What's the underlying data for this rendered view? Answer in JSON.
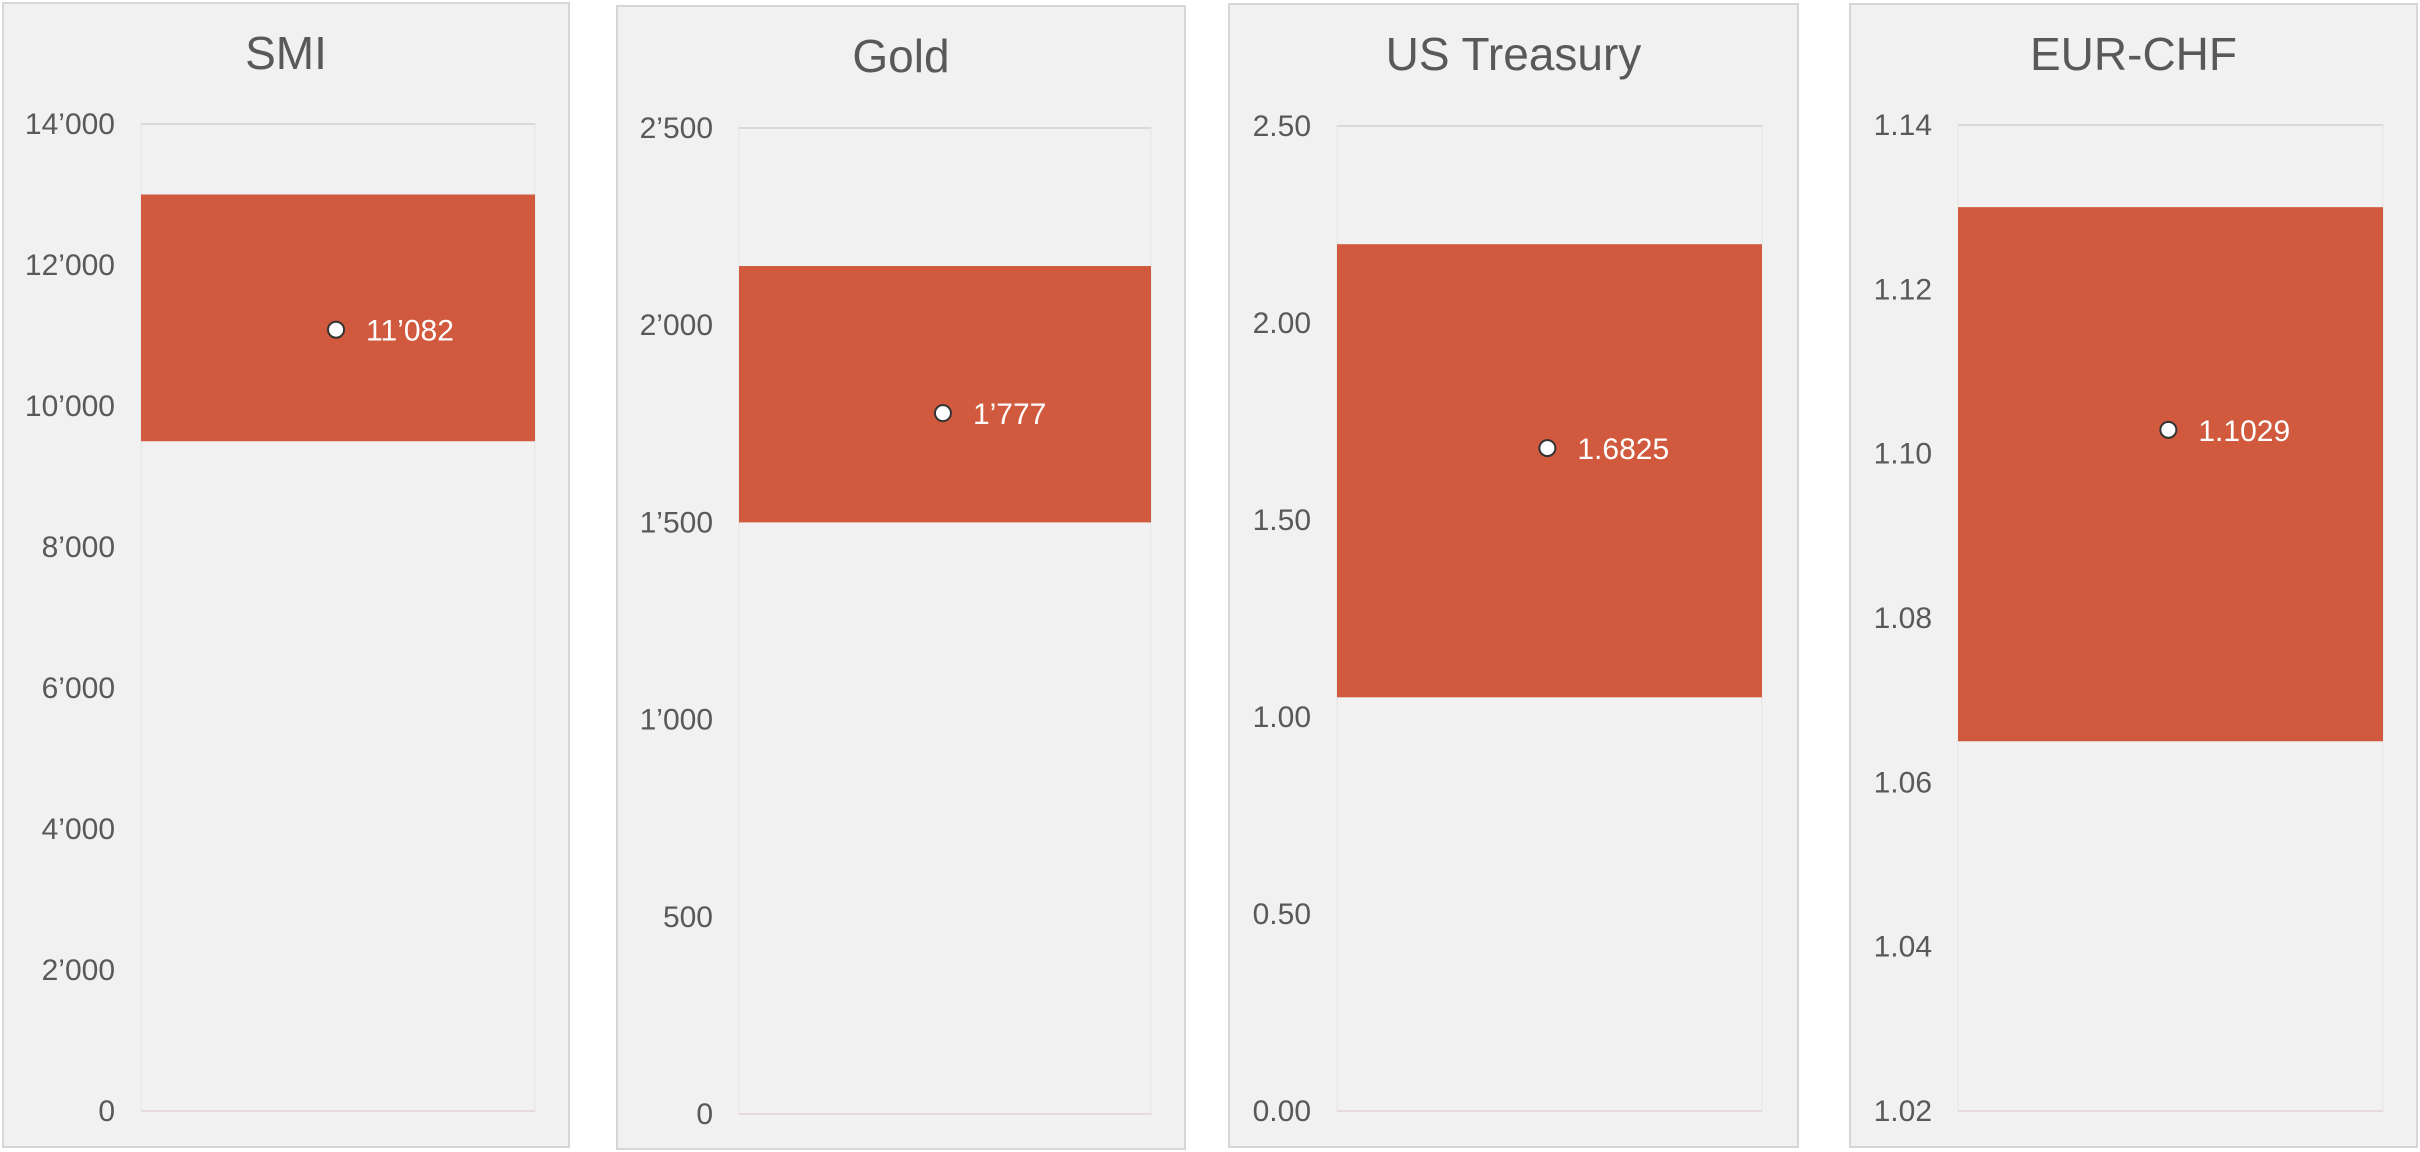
{
  "colors": {
    "band": "#d15a3e",
    "panel_bg": "#f1f1f1",
    "grid": "#d9d9d9",
    "text": "#595959",
    "label": "#ffffff"
  },
  "chart_data": [
    {
      "type": "range-bar",
      "title": "SMI",
      "ylim": [
        0,
        14000
      ],
      "ticks": [
        "0",
        "2’000",
        "4’000",
        "6’000",
        "8’000",
        "10’000",
        "12’000",
        "14’000"
      ],
      "tick_values": [
        0,
        2000,
        4000,
        6000,
        8000,
        10000,
        12000,
        14000
      ],
      "range": [
        9500,
        13000
      ],
      "point": {
        "value": 11082,
        "label": "11’082"
      },
      "grid": "top gridline only"
    },
    {
      "type": "range-bar",
      "title": "Gold",
      "ylim": [
        0,
        2500
      ],
      "ticks": [
        "0",
        "500",
        "1’000",
        "1’500",
        "2’000",
        "2’500"
      ],
      "tick_values": [
        0,
        500,
        1000,
        1500,
        2000,
        2500
      ],
      "range": [
        1500,
        2150
      ],
      "point": {
        "value": 1777,
        "label": "1’777"
      },
      "grid": "top gridline only"
    },
    {
      "type": "range-bar",
      "title": "US Treasury",
      "ylim": [
        0,
        2.5
      ],
      "ticks": [
        "0.00",
        "0.50",
        "1.00",
        "1.50",
        "2.00",
        "2.50"
      ],
      "tick_values": [
        0,
        0.5,
        1.0,
        1.5,
        2.0,
        2.5
      ],
      "range": [
        1.05,
        2.2
      ],
      "point": {
        "value": 1.6825,
        "label": "1.6825"
      },
      "grid": "top gridline only"
    },
    {
      "type": "range-bar",
      "title": "EUR-CHF",
      "ylim": [
        1.02,
        1.14
      ],
      "ticks": [
        "1.02",
        "1.04",
        "1.06",
        "1.08",
        "1.10",
        "1.12",
        "1.14"
      ],
      "tick_values": [
        1.02,
        1.04,
        1.06,
        1.08,
        1.1,
        1.12,
        1.14
      ],
      "range": [
        1.065,
        1.13
      ],
      "point": {
        "value": 1.1029,
        "label": "1.1029"
      },
      "grid": "top gridline only"
    }
  ]
}
